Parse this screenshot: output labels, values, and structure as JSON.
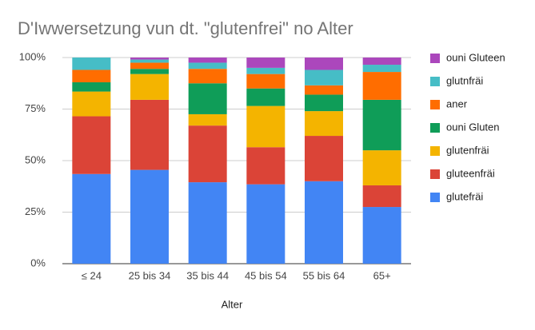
{
  "chart_data": {
    "type": "stacked_bar",
    "title": "D'Iwwersetzung vun dt. \"glutenfrei\" no Alter",
    "x_label": "Alter",
    "categories": [
      "≤ 24",
      "25 bis 34",
      "35 bis 44",
      "45 bis 54",
      "55 bis 64",
      "65+"
    ],
    "series": [
      {
        "name": "glutefräi",
        "color": "#4285f4",
        "values": [
          43.5,
          45.5,
          39.5,
          38.5,
          40,
          27.5
        ]
      },
      {
        "name": "gluteenfräi",
        "color": "#db4437",
        "values": [
          28,
          34,
          27.5,
          18,
          22,
          10.5
        ]
      },
      {
        "name": "glutenfräi",
        "color": "#f4b400",
        "values": [
          12,
          12.5,
          5.5,
          20,
          12,
          17
        ]
      },
      {
        "name": "ouni Gluten",
        "color": "#0f9d58",
        "values": [
          4.5,
          2.5,
          15,
          8.5,
          8,
          24.5
        ]
      },
      {
        "name": "aner",
        "color": "#ff6d00",
        "values": [
          6,
          3,
          7,
          7,
          4.5,
          13.5
        ]
      },
      {
        "name": "glutnfräi",
        "color": "#46bdc6",
        "values": [
          6,
          1.5,
          3,
          3,
          7.5,
          3.5
        ]
      },
      {
        "name": "ouni Gluteen",
        "color": "#ab47bc",
        "values": [
          0,
          1,
          2.5,
          5,
          6,
          3.5
        ]
      }
    ],
    "ylim": [
      0,
      100
    ],
    "yticks": [
      {
        "value": 0,
        "label": "0%"
      },
      {
        "value": 25,
        "label": "25%"
      },
      {
        "value": 50,
        "label": "50%"
      },
      {
        "value": 75,
        "label": "75%"
      },
      {
        "value": 100,
        "label": "100%"
      }
    ],
    "grid": true
  }
}
